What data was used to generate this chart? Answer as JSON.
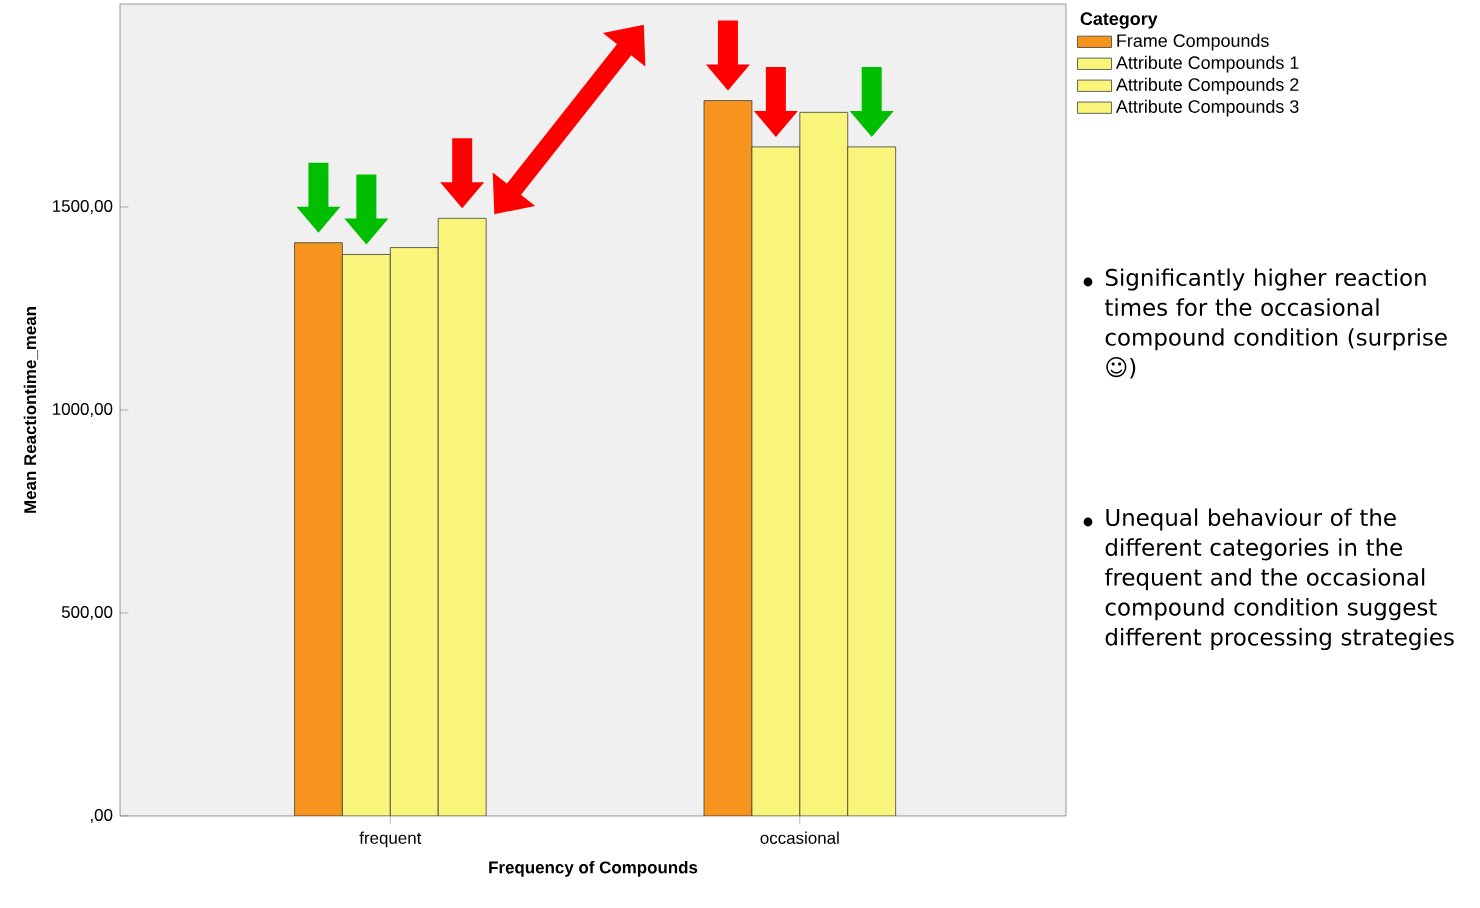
{
  "chart_data": {
    "type": "bar",
    "xlabel": "Frequency of Compounds",
    "ylabel": "Mean Reactiontime_mean",
    "legend_title": "Category",
    "categories": [
      "frequent",
      "occasional"
    ],
    "series": [
      {
        "name": "Frame Compounds",
        "color": "#f7941d",
        "values": [
          1412,
          1762
        ]
      },
      {
        "name": "Attribute Compounds 1",
        "color": "#f9f57a",
        "values": [
          1383,
          1648
        ]
      },
      {
        "name": "Attribute Compounds 2",
        "color": "#f9f57a",
        "values": [
          1400,
          1733
        ]
      },
      {
        "name": "Attribute Compounds 3",
        "color": "#f9f57a",
        "values": [
          1472,
          1648
        ]
      }
    ],
    "ylim": [
      0,
      2000
    ],
    "yticks": [
      {
        "value": 0,
        "label": ",00"
      },
      {
        "value": 500,
        "label": "500,00"
      },
      {
        "value": 1000,
        "label": "1000,00"
      },
      {
        "value": 1500,
        "label": "1500,00"
      }
    ],
    "grid": false,
    "legend": "top right",
    "annotations": [
      "Significantly higher reaction times for the occasional compound condition (surprise ☺)",
      "Unequal behaviour of the different categories in the frequent and the occasional compound condition suggest different processing strategies"
    ]
  }
}
